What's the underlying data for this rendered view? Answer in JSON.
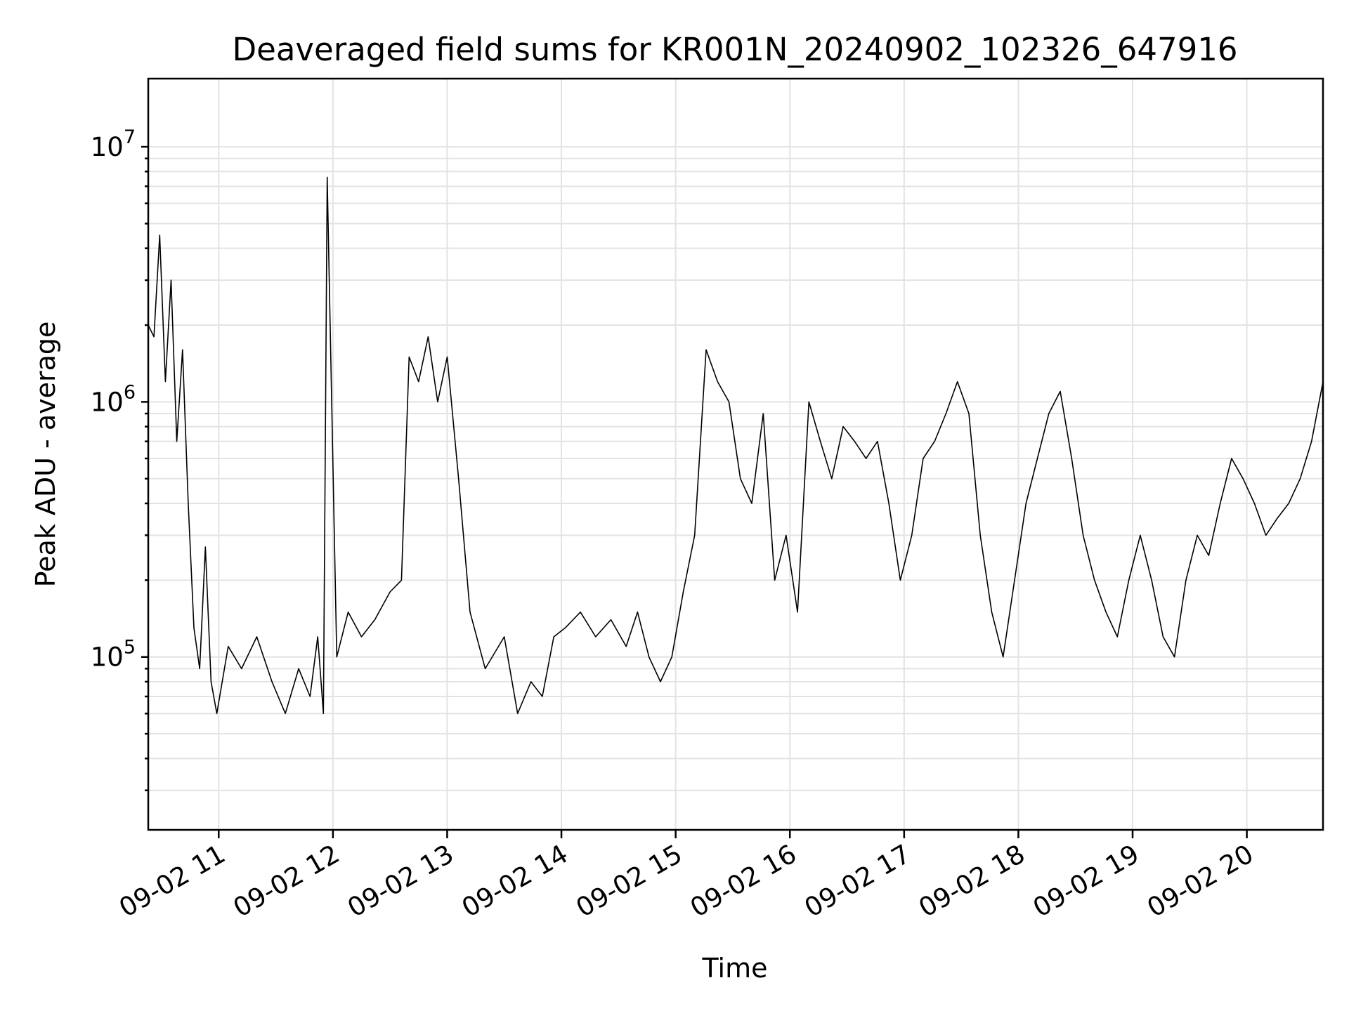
{
  "chart_data": {
    "type": "line",
    "title": "Deaveraged field sums for KR001N_20240902_102326_647916",
    "xlabel": "Time",
    "ylabel": "Peak ADU - average",
    "yscale": "log",
    "ylim": [
      21000,
      18500000
    ],
    "xlim": [
      "09-02 10:23",
      "09-02 20:40"
    ],
    "grid": true,
    "line_color": "#000000",
    "x_ticks": [
      "09-02 11",
      "09-02 12",
      "09-02 13",
      "09-02 14",
      "09-02 15",
      "09-02 16",
      "09-02 17",
      "09-02 18",
      "09-02 19",
      "09-02 20"
    ],
    "y_ticks": [
      {
        "base": "10",
        "exp": "5"
      },
      {
        "base": "10",
        "exp": "6"
      },
      {
        "base": "10",
        "exp": "7"
      }
    ],
    "series": [
      {
        "x": [
          "10:23",
          "10:26",
          "10:29",
          "10:32",
          "10:35",
          "10:38",
          "10:41",
          "10:44",
          "10:47",
          "10:50",
          "10:53",
          "10:56",
          "10:59",
          "11:05",
          "11:12",
          "11:20",
          "11:28",
          "11:35",
          "11:42",
          "11:48",
          "11:52",
          "11:55",
          "11:57",
          "12:02",
          "12:08",
          "12:15",
          "12:22",
          "12:30",
          "12:36",
          "12:40",
          "12:45",
          "12:50",
          "12:55",
          "13:00",
          "13:06",
          "13:12",
          "13:20",
          "13:30",
          "13:37",
          "13:44",
          "13:50",
          "13:56",
          "14:02",
          "14:10",
          "14:18",
          "14:26",
          "14:34",
          "14:40",
          "14:46",
          "14:52",
          "14:58",
          "15:04",
          "15:10",
          "15:16",
          "15:22",
          "15:28",
          "15:34",
          "15:40",
          "15:46",
          "15:52",
          "15:58",
          "16:04",
          "16:10",
          "16:16",
          "16:22",
          "16:28",
          "16:34",
          "16:40",
          "16:46",
          "16:52",
          "16:58",
          "17:04",
          "17:10",
          "17:16",
          "17:22",
          "17:28",
          "17:34",
          "17:40",
          "17:46",
          "17:52",
          "17:58",
          "18:04",
          "18:10",
          "18:16",
          "18:22",
          "18:28",
          "18:34",
          "18:40",
          "18:46",
          "18:52",
          "18:58",
          "19:04",
          "19:10",
          "19:16",
          "19:22",
          "19:28",
          "19:34",
          "19:40",
          "19:46",
          "19:52",
          "19:58",
          "20:04",
          "20:10",
          "20:16",
          "20:22",
          "20:28",
          "20:34",
          "20:40"
        ],
        "y": [
          2000000,
          1800000,
          4500000,
          1200000,
          3000000,
          700000,
          1600000,
          400000,
          130000,
          90000,
          270000,
          80000,
          60000,
          110000,
          90000,
          120000,
          80000,
          60000,
          90000,
          70000,
          120000,
          60000,
          7600000,
          100000,
          150000,
          120000,
          140000,
          180000,
          200000,
          1500000,
          1200000,
          1800000,
          1000000,
          1500000,
          500000,
          150000,
          90000,
          120000,
          60000,
          80000,
          70000,
          120000,
          130000,
          150000,
          120000,
          140000,
          110000,
          150000,
          100000,
          80000,
          100000,
          180000,
          300000,
          1600000,
          1200000,
          1000000,
          500000,
          400000,
          900000,
          200000,
          300000,
          150000,
          1000000,
          700000,
          500000,
          800000,
          700000,
          600000,
          700000,
          400000,
          200000,
          300000,
          600000,
          700000,
          900000,
          1200000,
          900000,
          300000,
          150000,
          100000,
          200000,
          400000,
          600000,
          900000,
          1100000,
          600000,
          300000,
          200000,
          150000,
          120000,
          200000,
          300000,
          200000,
          120000,
          100000,
          200000,
          300000,
          250000,
          400000,
          600000,
          500000,
          400000,
          300000,
          350000,
          400000,
          500000,
          700000,
          1200000
        ],
        "values_note_shown": false
      }
    ]
  }
}
